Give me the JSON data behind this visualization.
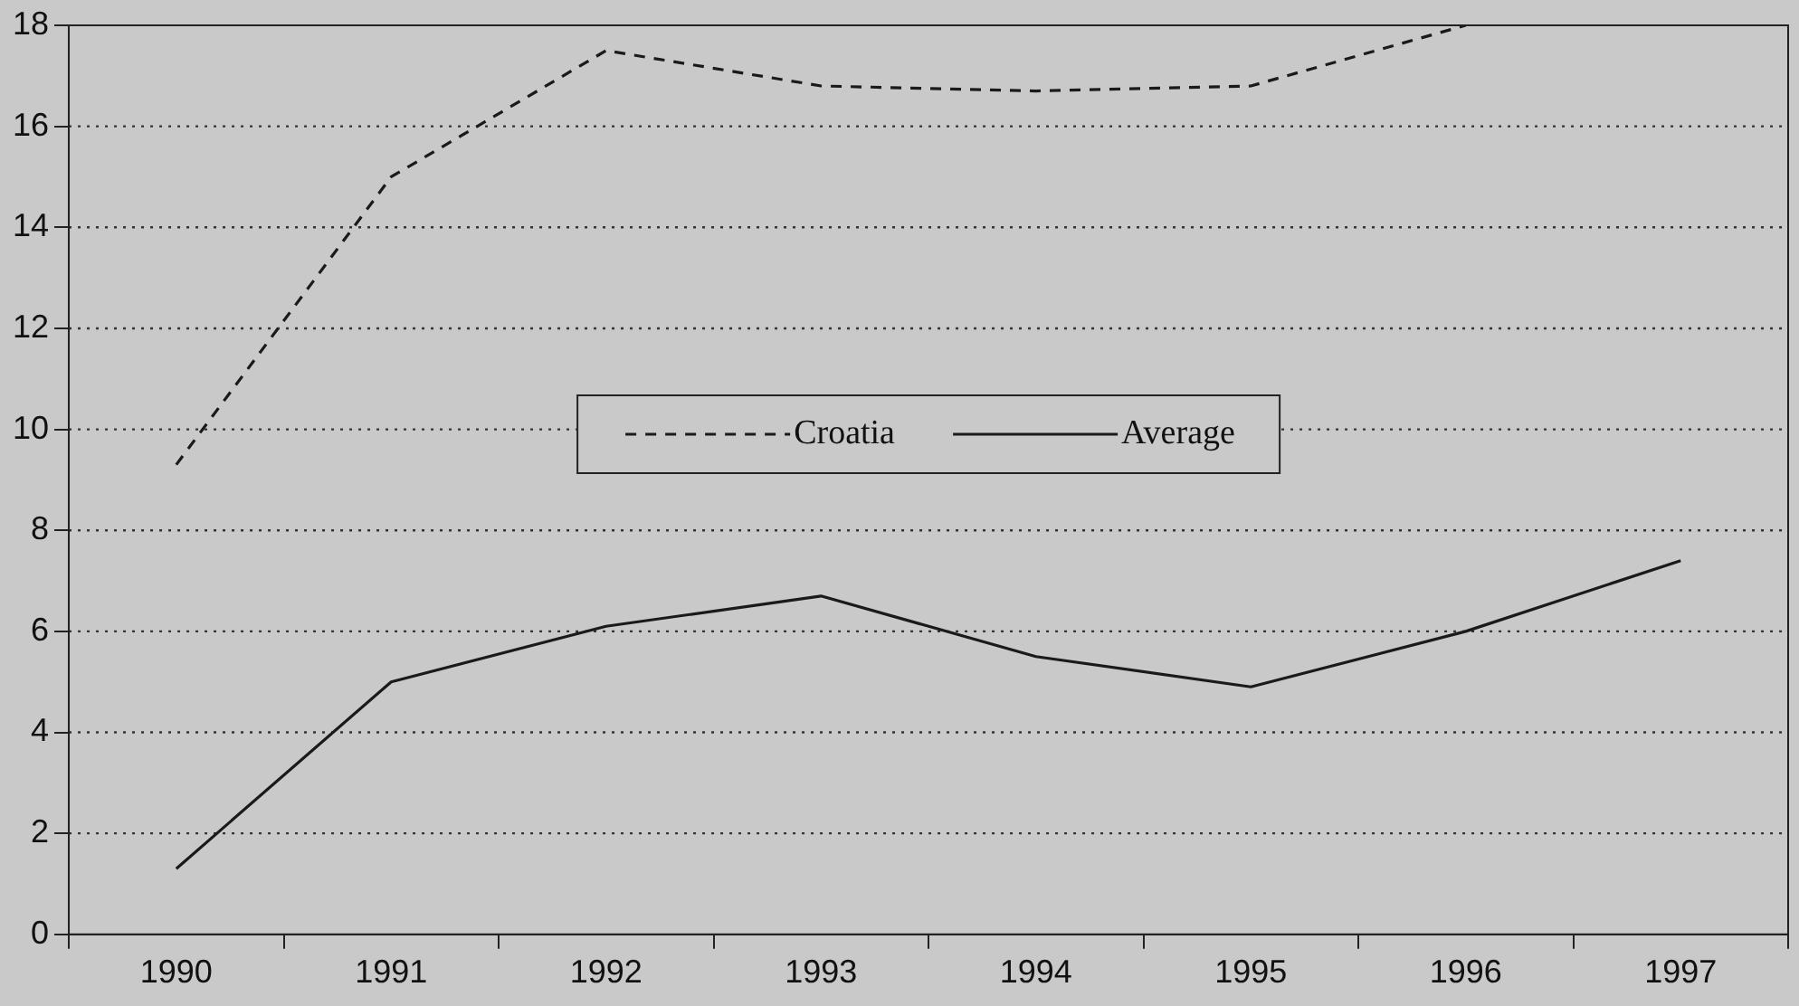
{
  "chart_data": {
    "type": "line",
    "categories": [
      "1990",
      "1991",
      "1992",
      "1993",
      "1994",
      "1995",
      "1996",
      "1997"
    ],
    "series": [
      {
        "name": "Croatia",
        "color": "#1a1a1a",
        "line_style": "dashed",
        "values": [
          9.3,
          15.0,
          17.5,
          16.8,
          16.7,
          16.8,
          18.0,
          null
        ]
      },
      {
        "name": "Average",
        "color": "#1a1a1a",
        "line_style": "solid",
        "values": [
          1.3,
          5.0,
          6.1,
          6.7,
          5.5,
          4.9,
          6.0,
          7.4
        ]
      }
    ],
    "ylim": [
      0,
      18
    ],
    "yticks": [
      0,
      2,
      4,
      6,
      8,
      10,
      12,
      14,
      16,
      18
    ],
    "grid": "y",
    "legend": "center",
    "marker": "none"
  }
}
